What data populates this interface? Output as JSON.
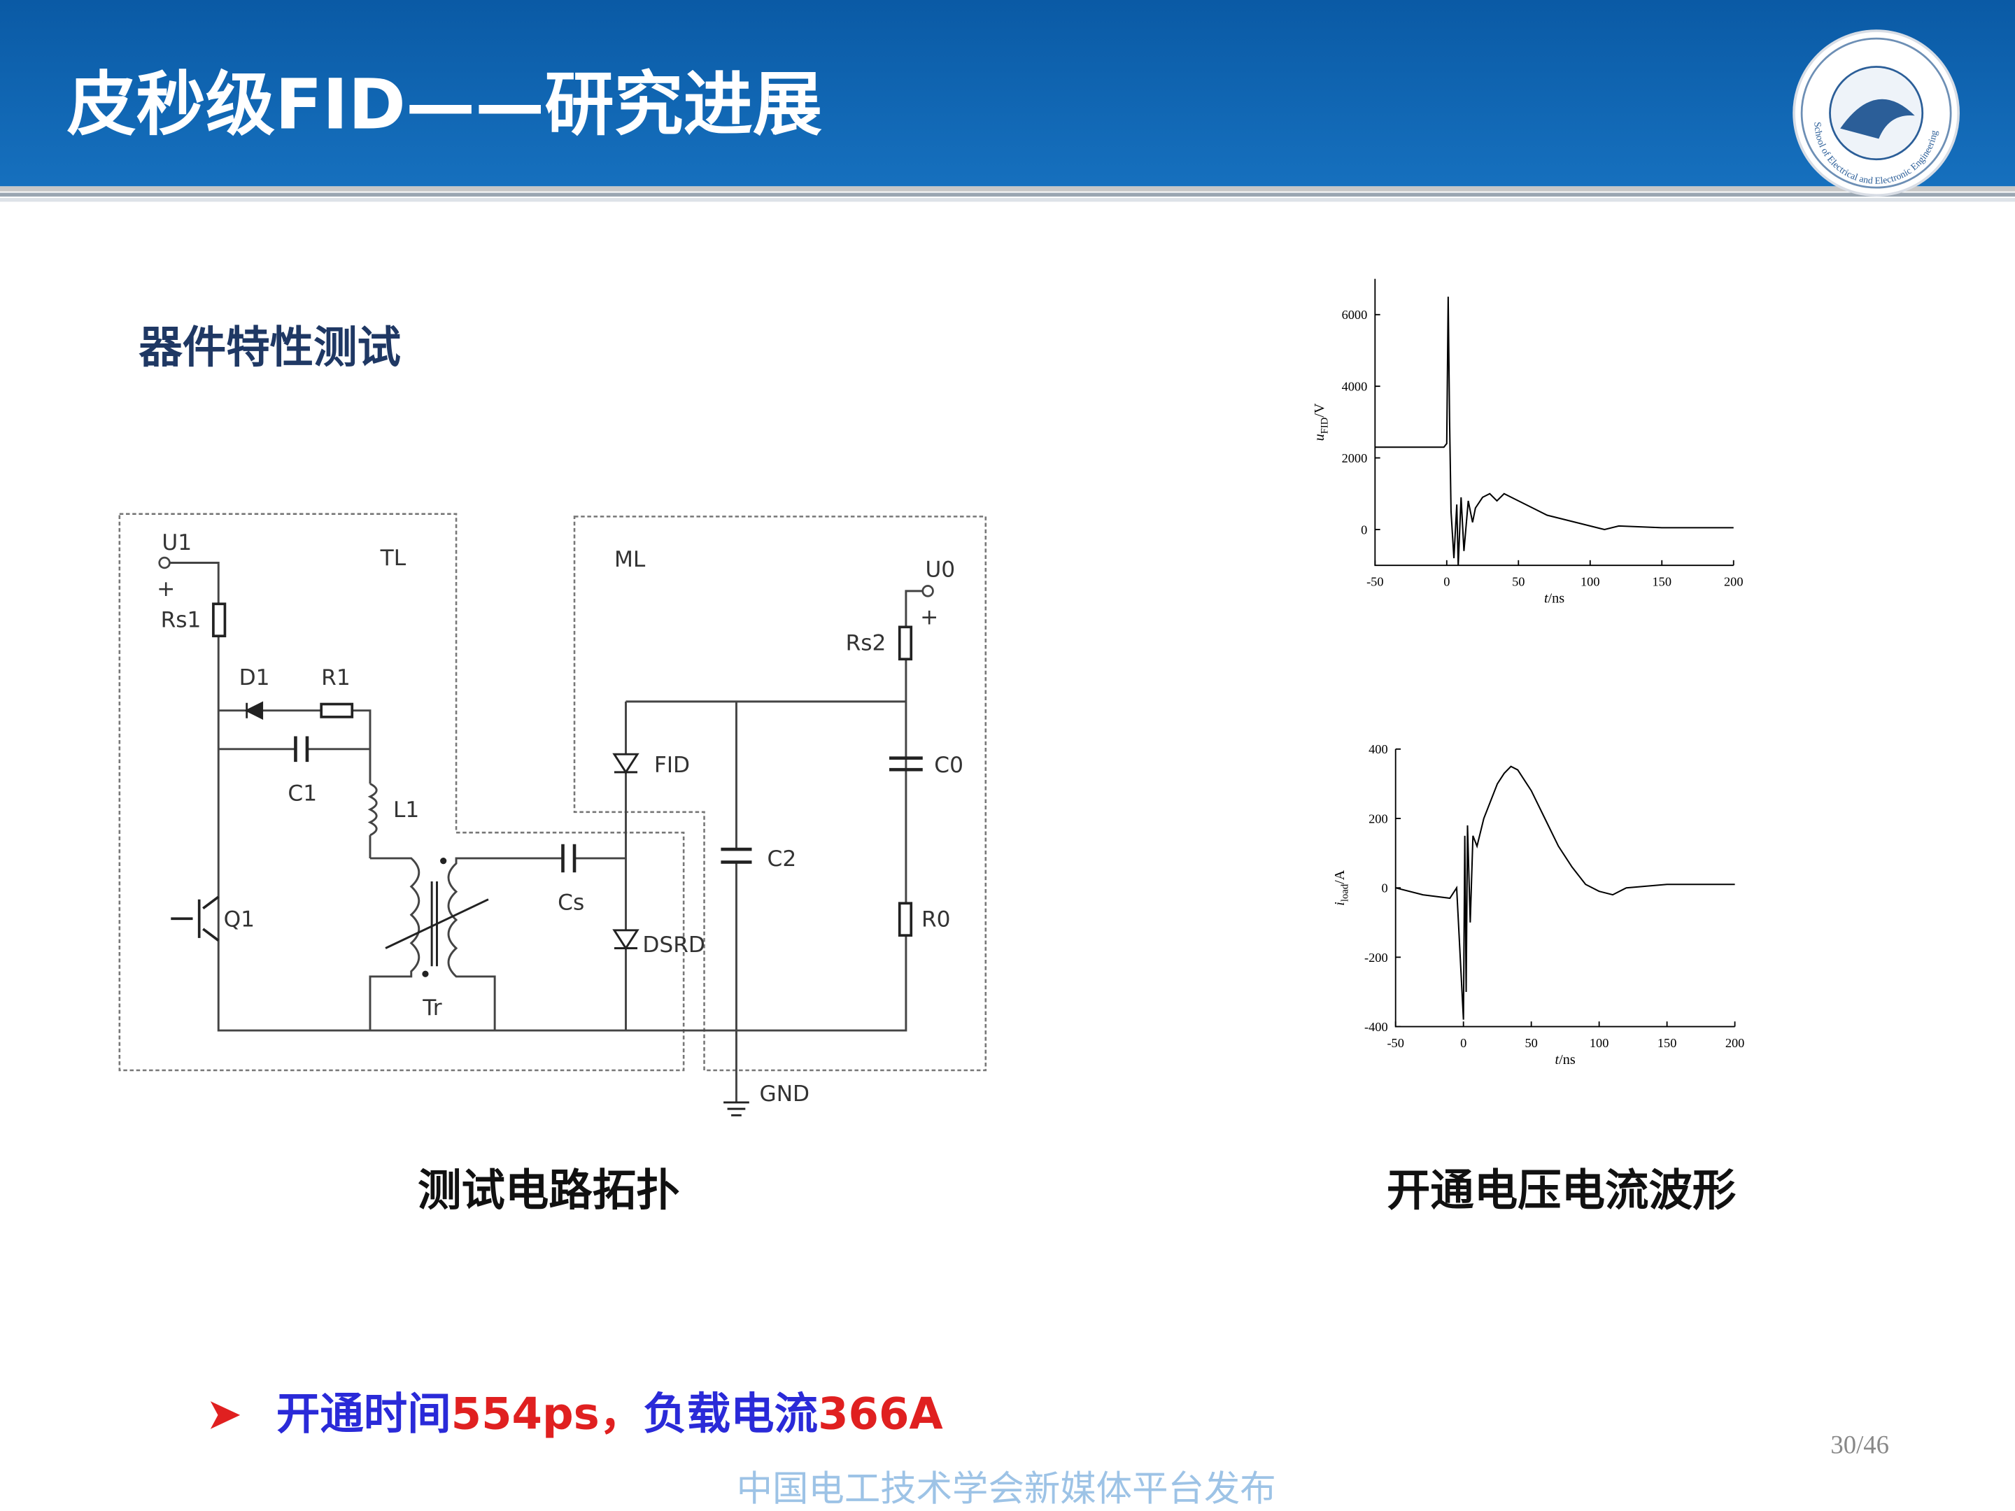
{
  "header": {
    "title": "皮秒级FID——研究进展",
    "logo_text": "School of Electrical and Electronic Engineering"
  },
  "subtitle": "器件特性测试",
  "circuit": {
    "labels": [
      "U1",
      "TL",
      "ML",
      "U0",
      "+",
      "+",
      "Rs1",
      "D1",
      "R1",
      "C1",
      "L1",
      "Q1",
      "Tr",
      "Cs",
      "FID",
      "DSRD",
      "C2",
      "C0",
      "Rs2",
      "R0",
      "GND"
    ],
    "caption": "测试电路拓扑"
  },
  "waveforms": {
    "caption": "开通电压电流波形",
    "charts": [
      {
        "type": "line",
        "ylabel": {
          "var": "u",
          "sub": "FID",
          "unit": "/V"
        },
        "xlabel": {
          "var": "t",
          "unit": "/ns"
        },
        "xlim": [
          -50,
          200
        ],
        "xticks": [
          -50,
          0,
          50,
          100,
          150,
          200
        ],
        "ylim": [
          -1000,
          7000
        ],
        "yticks": [
          0,
          2000,
          4000,
          6000
        ],
        "color": "#000000",
        "x": [
          -50,
          -40,
          -30,
          -20,
          -10,
          -2,
          0,
          1,
          2,
          3,
          5,
          7,
          8,
          10,
          12,
          15,
          18,
          20,
          25,
          30,
          35,
          40,
          45,
          50,
          55,
          60,
          70,
          80,
          90,
          100,
          110,
          120,
          150,
          200
        ],
        "values": [
          2300,
          2300,
          2300,
          2300,
          2300,
          2300,
          2400,
          6500,
          3000,
          500,
          -800,
          700,
          -1000,
          900,
          -600,
          800,
          200,
          600,
          900,
          1000,
          800,
          1000,
          900,
          800,
          700,
          600,
          400,
          300,
          200,
          100,
          0,
          100,
          50,
          50
        ]
      },
      {
        "type": "line",
        "ylabel": {
          "var": "i",
          "sub": "load",
          "unit": "/A"
        },
        "xlabel": {
          "var": "t",
          "unit": "/ns"
        },
        "xlim": [
          -50,
          200
        ],
        "xticks": [
          -50,
          0,
          50,
          100,
          150,
          200
        ],
        "ylim": [
          -400,
          400
        ],
        "yticks": [
          -400,
          -200,
          0,
          200,
          400
        ],
        "color": "#000000",
        "x": [
          -50,
          -30,
          -10,
          -5,
          0,
          1,
          2,
          3,
          5,
          7,
          10,
          15,
          20,
          25,
          30,
          35,
          40,
          50,
          60,
          70,
          80,
          90,
          100,
          110,
          120,
          150,
          200
        ],
        "values": [
          0,
          -20,
          -30,
          0,
          -380,
          150,
          -300,
          180,
          -100,
          150,
          120,
          200,
          250,
          300,
          330,
          350,
          340,
          280,
          200,
          120,
          60,
          10,
          -10,
          -20,
          0,
          10,
          10
        ]
      }
    ]
  },
  "bullet": {
    "marker": "➤",
    "parts": [
      "开通时间",
      "554ps，",
      "负载电流",
      "366A"
    ]
  },
  "page_number": "30/46",
  "footer": "中国电工技术学会新媒体平台发布"
}
